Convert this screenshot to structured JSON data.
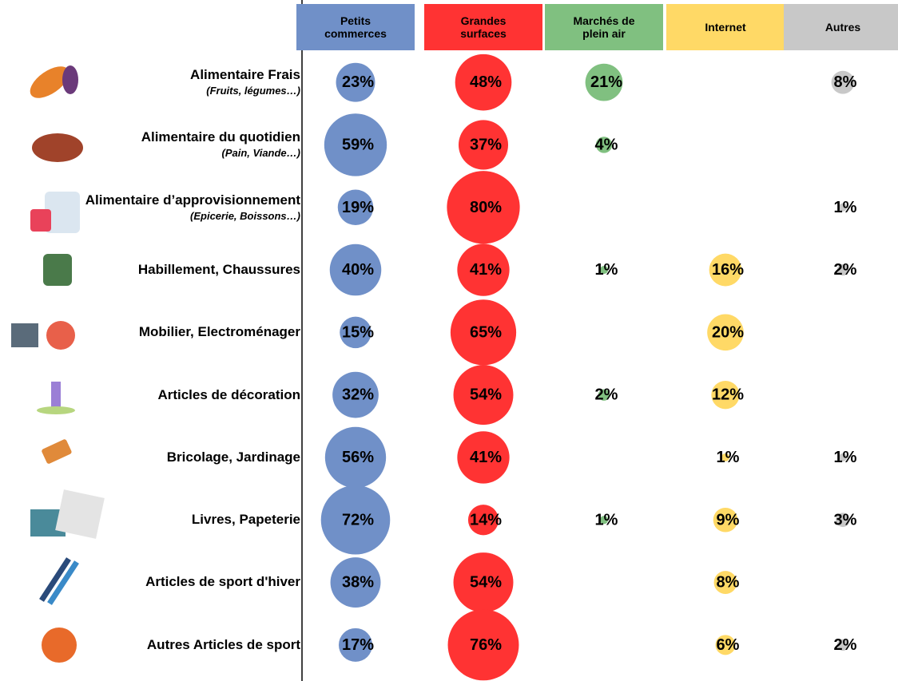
{
  "chart_data": {
    "type": "bubble-matrix",
    "categories": [
      "Alimentaire Frais",
      "Alimentaire du quotidien",
      "Alimentaire d’approvisionnement",
      "Habillement, Chaussures",
      "Mobilier, Electroménager",
      "Articles de décoration",
      "Bricolage, Jardinage",
      "Livres, Papeterie",
      "Articles de sport d'hiver",
      "Autres Articles de sport"
    ],
    "category_notes": [
      "(Fruits, légumes…)",
      "(Pain, Viande…)",
      "(Epicerie, Boissons…)",
      null,
      null,
      null,
      null,
      null,
      null,
      null
    ],
    "series": [
      {
        "name": "Petits commerces",
        "color": "#7090c8",
        "values": [
          23,
          59,
          19,
          40,
          15,
          32,
          56,
          72,
          38,
          17
        ],
        "value_labels": [
          "23%",
          "59%",
          "19%",
          "40%",
          "15%",
          "32%",
          "56%",
          "72%",
          "38%",
          "17%"
        ]
      },
      {
        "name": "Grandes surfaces",
        "color": "#ff3333",
        "values": [
          48,
          37,
          80,
          41,
          65,
          54,
          41,
          14,
          54,
          76
        ],
        "value_labels": [
          "48%",
          "37%",
          "80%",
          "41%",
          "65%",
          "54%",
          "41%",
          "14%",
          "54%",
          "76%"
        ]
      },
      {
        "name": "Marchés de plein air",
        "color": "#80c080",
        "values": [
          21,
          4,
          null,
          1,
          null,
          2,
          null,
          1,
          null,
          null
        ],
        "value_labels": [
          "21%",
          "4%",
          null,
          "1%",
          null,
          "2%",
          null,
          "1%",
          null,
          null
        ]
      },
      {
        "name": "Internet",
        "color": "#ffd966",
        "values": [
          null,
          null,
          null,
          16,
          20,
          12,
          1,
          9,
          8,
          6
        ],
        "value_labels": [
          null,
          null,
          null,
          "16%",
          "20%",
          "12%",
          "1%",
          "9%",
          "8%",
          "6%"
        ]
      },
      {
        "name": "Autres",
        "color": "#c8c8c8",
        "values": [
          8,
          null,
          1,
          2,
          null,
          null,
          1,
          3,
          null,
          2
        ],
        "value_labels": [
          "8%",
          null,
          "1%",
          "2%",
          null,
          null,
          "1%",
          "3%",
          null,
          "2%"
        ]
      }
    ]
  }
}
